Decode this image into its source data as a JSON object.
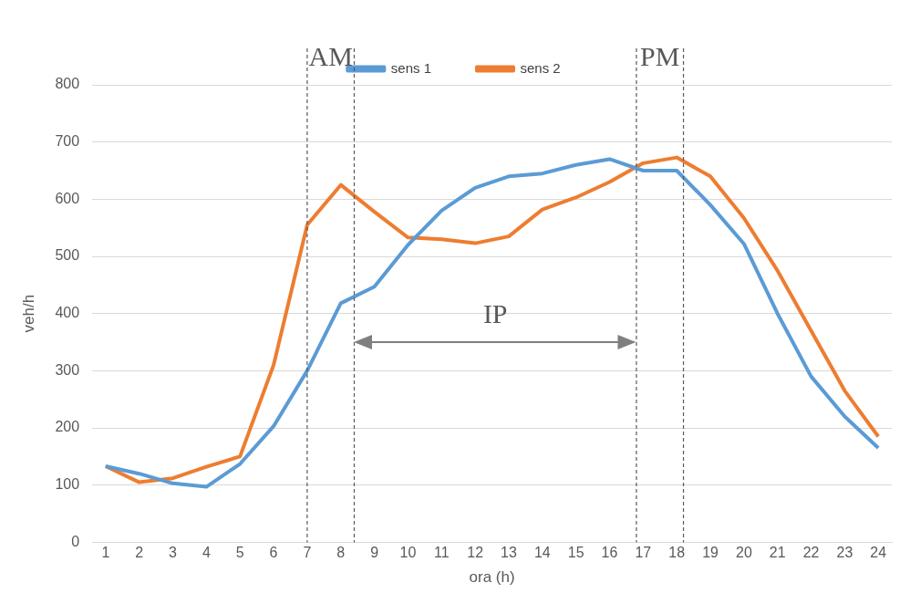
{
  "chart_data": {
    "type": "line",
    "xlabel": "ora (h)",
    "ylabel": "veh/h",
    "x": [
      1,
      2,
      3,
      4,
      5,
      6,
      7,
      8,
      9,
      10,
      11,
      12,
      13,
      14,
      15,
      16,
      17,
      18,
      19,
      20,
      21,
      22,
      23,
      24
    ],
    "xlim": [
      0.6,
      24.4
    ],
    "xticks": [
      1,
      2,
      3,
      4,
      5,
      6,
      7,
      8,
      9,
      10,
      11,
      12,
      13,
      14,
      15,
      16,
      17,
      18,
      19,
      20,
      21,
      22,
      23,
      24
    ],
    "ylim": [
      0,
      800
    ],
    "yticks": [
      0,
      100,
      200,
      300,
      400,
      500,
      600,
      700,
      800
    ],
    "series": [
      {
        "name": "sens 1",
        "color": "#5b9bd5",
        "values": [
          133,
          120,
          103,
          97,
          137,
          203,
          300,
          418,
          447,
          520,
          580,
          620,
          640,
          645,
          660,
          670,
          650,
          650,
          590,
          522,
          400,
          290,
          220,
          165
        ]
      },
      {
        "name": "sens 2",
        "color": "#ed7d31",
        "values": [
          133,
          105,
          112,
          132,
          150,
          310,
          555,
          625,
          578,
          533,
          530,
          523,
          535,
          582,
          603,
          630,
          663,
          673,
          640,
          567,
          475,
          370,
          265,
          185
        ]
      }
    ],
    "ref_lines": [
      {
        "axis": "x",
        "value": 7,
        "color": "#595959",
        "line_style": "dashed"
      },
      {
        "axis": "x",
        "value": 8.4,
        "color": "#595959",
        "line_style": "dashed"
      },
      {
        "axis": "x",
        "value": 16.8,
        "color": "#595959",
        "line_style": "dashed"
      },
      {
        "axis": "x",
        "value": 18.2,
        "color": "#595959",
        "line_style": "dashed"
      }
    ],
    "annotations": [
      "AM",
      "IP",
      "PM"
    ],
    "grid": "y",
    "legend": "top",
    "marker": "none",
    "line_style": "solid"
  }
}
